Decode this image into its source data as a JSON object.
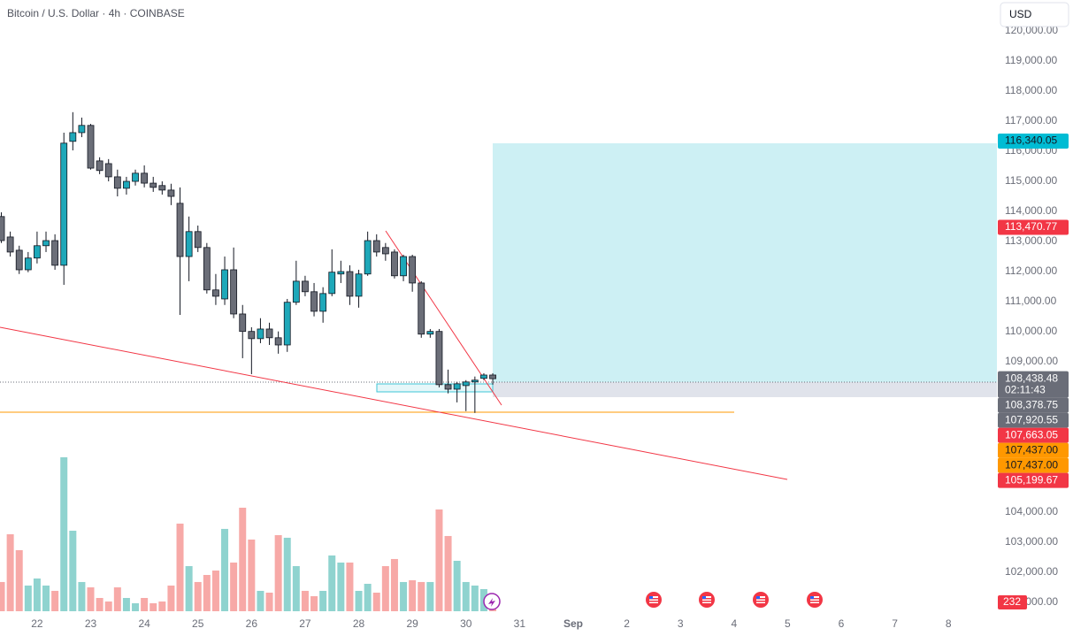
{
  "header": {
    "title": "Bitcoin / U.S. Dollar · 4h · COINBASE",
    "currency": "USD"
  },
  "chart_data": {
    "type": "candlestick",
    "x": [
      -16,
      -12,
      -8,
      -4,
      0,
      4,
      8,
      12,
      16,
      20,
      24,
      28,
      32,
      36,
      40,
      44,
      48,
      52,
      56,
      60,
      64,
      68,
      72,
      76,
      80,
      84,
      88,
      92,
      96,
      100,
      104,
      108,
      112,
      116,
      120,
      124,
      128,
      132,
      136,
      140,
      144,
      148,
      152,
      156,
      160,
      164,
      168,
      172,
      176,
      180,
      184,
      188,
      192,
      196,
      200,
      204
    ],
    "open": [
      113830,
      113150,
      112710,
      112060,
      112450,
      112860,
      113030,
      112210,
      116330,
      116620,
      116860,
      115680,
      115590,
      115150,
      114770,
      115000,
      115270,
      114940,
      114860,
      114710,
      114270,
      112500,
      113330,
      112800,
      111390,
      111090,
      112060,
      110590,
      110010,
      109770,
      110090,
      109800,
      109560,
      110980,
      111680,
      111330,
      110680,
      111270,
      111920,
      112000,
      111180,
      111920,
      113030,
      112800,
      112650,
      111860,
      112500,
      111620,
      109920,
      110010,
      108240,
      108090,
      108210,
      108330,
      108450,
      108560
    ],
    "high": [
      113970,
      113330,
      112860,
      112650,
      113330,
      113330,
      113240,
      116620,
      117300,
      117120,
      116910,
      115800,
      115740,
      115390,
      115150,
      115390,
      115530,
      115150,
      115000,
      114920,
      114800,
      113830,
      113530,
      112950,
      111920,
      112500,
      112800,
      110890,
      110150,
      110450,
      110300,
      110010,
      111090,
      112360,
      111860,
      111620,
      111480,
      112740,
      112360,
      112210,
      112060,
      113330,
      113240,
      112950,
      112740,
      112560,
      112560,
      111680,
      110090,
      110090,
      108740,
      108330,
      108390,
      108510,
      108620,
      108620
    ],
    "low": [
      112950,
      112500,
      111920,
      111980,
      112270,
      112650,
      112060,
      111560,
      116030,
      116470,
      115390,
      115240,
      115000,
      114500,
      114560,
      114860,
      114800,
      114650,
      114560,
      114210,
      110560,
      111680,
      112650,
      111270,
      110890,
      110890,
      110450,
      109120,
      108590,
      109620,
      109560,
      109270,
      109330,
      110890,
      111180,
      110510,
      110300,
      111180,
      111620,
      110890,
      110800,
      111860,
      112500,
      112360,
      111770,
      111680,
      111330,
      109800,
      109800,
      108150,
      107950,
      107650,
      107360,
      107300,
      108390,
      108240
    ],
    "close": [
      113030,
      112650,
      112060,
      112450,
      112860,
      113030,
      112210,
      116270,
      116620,
      116860,
      115440,
      115360,
      115150,
      114770,
      115000,
      115270,
      114940,
      114800,
      114710,
      114500,
      112500,
      113330,
      112800,
      111390,
      111180,
      112060,
      110590,
      110010,
      109770,
      110090,
      109800,
      109560,
      110980,
      111680,
      111330,
      110680,
      111270,
      111980,
      112000,
      111180,
      111920,
      113030,
      112650,
      112590,
      111860,
      112500,
      111620,
      109920,
      110010,
      108240,
      108090,
      108270,
      108330,
      108390,
      108560,
      108438.48
    ],
    "volume": [
      766,
      2018,
      1601,
      673,
      858,
      673,
      534,
      4037,
      2111,
      766,
      626,
      348,
      255,
      626,
      348,
      209,
      348,
      209,
      255,
      673,
      2297,
      1183,
      766,
      951,
      1067,
      2158,
      1276,
      2714,
      1879,
      534,
      487,
      1995,
      1926,
      1183,
      534,
      394,
      534,
      1462,
      1276,
      1276,
      534,
      719,
      487,
      1183,
      1369,
      766,
      812,
      766,
      766,
      2668,
      1972,
      1322,
      766,
      673,
      580,
      232
    ],
    "xlim": [
      -16.6,
      429.7
    ],
    "xticks": [
      {
        "value": 0,
        "label": "22"
      },
      {
        "value": 24,
        "label": "23"
      },
      {
        "value": 48,
        "label": "24"
      },
      {
        "value": 72,
        "label": "25"
      },
      {
        "value": 96,
        "label": "26"
      },
      {
        "value": 120,
        "label": "27"
      },
      {
        "value": 144,
        "label": "28"
      },
      {
        "value": 168,
        "label": "29"
      },
      {
        "value": 192,
        "label": "30"
      },
      {
        "value": 216,
        "label": "31"
      },
      {
        "value": 240,
        "label": "Sep"
      },
      {
        "value": 264,
        "label": "2"
      },
      {
        "value": 288,
        "label": "3"
      },
      {
        "value": 312,
        "label": "4"
      },
      {
        "value": 336,
        "label": "5"
      },
      {
        "value": 360,
        "label": "6"
      },
      {
        "value": 384,
        "label": "7"
      },
      {
        "value": 408,
        "label": "8"
      }
    ],
    "ylim": [
      100530,
      121030
    ],
    "yticks": [
      {
        "value": 120000,
        "label": "120,000.00"
      },
      {
        "value": 119000,
        "label": "119,000.00"
      },
      {
        "value": 118000,
        "label": "118,000.00"
      },
      {
        "value": 117000,
        "label": "117,000.00"
      },
      {
        "value": 116000,
        "label": "116,000.00"
      },
      {
        "value": 115000,
        "label": "115,000.00"
      },
      {
        "value": 114000,
        "label": "114,000.00"
      },
      {
        "value": 113000,
        "label": "113,000.00"
      },
      {
        "value": 112000,
        "label": "112,000.00"
      },
      {
        "value": 111000,
        "label": "111,000.00"
      },
      {
        "value": 110000,
        "label": "110,000.00"
      },
      {
        "value": 109000,
        "label": "109,000.00"
      },
      {
        "value": 104000,
        "label": "104,000.00"
      },
      {
        "value": 103000,
        "label": "103,000.00"
      },
      {
        "value": 102000,
        "label": "102,000.00"
      },
      {
        "value": 101000,
        "label": "101,000.00"
      }
    ],
    "vlim": [
      0,
      4800
    ],
    "colors": {
      "up": "#1ea8b9",
      "down": "#6b6e78",
      "volume_up": "#8fd3cf",
      "volume_down": "#f7a9a7",
      "volume_label": "#f23645"
    },
    "grid": false,
    "annotations": [
      {
        "value": 116340.05,
        "label": "116,340.05",
        "color": "#00bcd4",
        "text_color": "#131722"
      },
      {
        "value": 113470.77,
        "label": "113,470.77",
        "color": "#f23645",
        "text_color": "#ffffff"
      },
      {
        "value": 108438.48,
        "label": "108,438.48",
        "color": "#6a6d78",
        "text_color": "#ffffff",
        "countdown": "02:11:43"
      },
      {
        "value": 108378.75,
        "label": "108,378.75",
        "color": "#6a6d78",
        "text_color": "#ffffff"
      },
      {
        "value": 107920.55,
        "label": "107,920.55",
        "color": "#6a6d78",
        "text_color": "#ffffff"
      },
      {
        "value": 107663.05,
        "label": "107,663.05",
        "color": "#f23645",
        "text_color": "#ffffff"
      },
      {
        "value": 107437.0,
        "label": "107,437.00",
        "color": "#ff9800",
        "text_color": "#131722"
      },
      {
        "value": 107437.0,
        "label": "107,437.00",
        "color": "#ff9800",
        "text_color": "#131722"
      },
      {
        "value": 105199.67,
        "label": "105,199.67",
        "color": "#f23645",
        "text_color": "#ffffff"
      }
    ]
  }
}
